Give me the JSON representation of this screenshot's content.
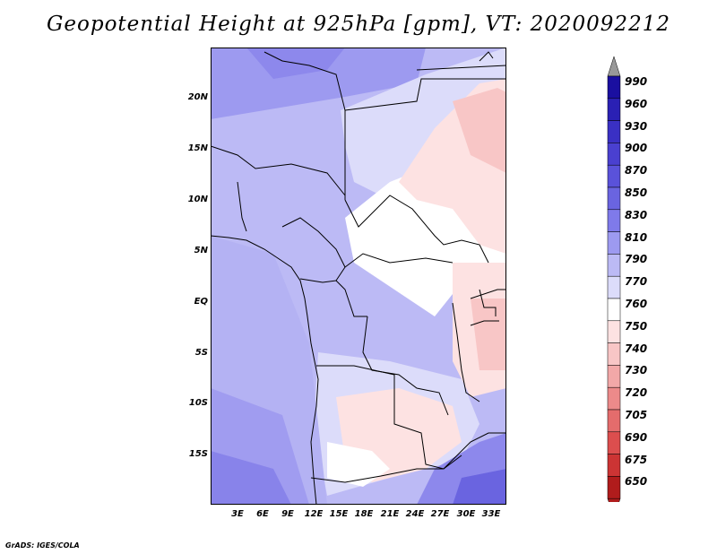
{
  "title": "Geopotential Height at 925hPa [gpm], VT: 2020092212",
  "credit": "GrADS: IGES/COLA",
  "map": {
    "lat_ticks": [
      "20N",
      "15N",
      "10N",
      "5N",
      "EQ",
      "5S",
      "10S",
      "15S"
    ],
    "lon_ticks": [
      "3E",
      "6E",
      "9E",
      "12E",
      "15E",
      "18E",
      "21E",
      "24E",
      "27E",
      "30E",
      "33E"
    ]
  },
  "colorbar": {
    "levels": [
      "990",
      "960",
      "930",
      "900",
      "870",
      "850",
      "830",
      "810",
      "790",
      "770",
      "760",
      "750",
      "740",
      "730",
      "720",
      "705",
      "690",
      "675",
      "650"
    ],
    "colors": [
      "#1a0fa0",
      "#2a20b4",
      "#3a30c4",
      "#4a40d0",
      "#5a52da",
      "#6a64e0",
      "#7f7aea",
      "#9d9af0",
      "#bcbaf5",
      "#dcdcfa",
      "#ffffff",
      "#fde2e2",
      "#f8c6c6",
      "#f2a8a8",
      "#ec8a8a",
      "#e46c6c",
      "#dc4e4e",
      "#cc3434",
      "#b01c1c"
    ],
    "top_arrow_color": "#999999",
    "bottom_arrow_color": "#b01c1c"
  }
}
